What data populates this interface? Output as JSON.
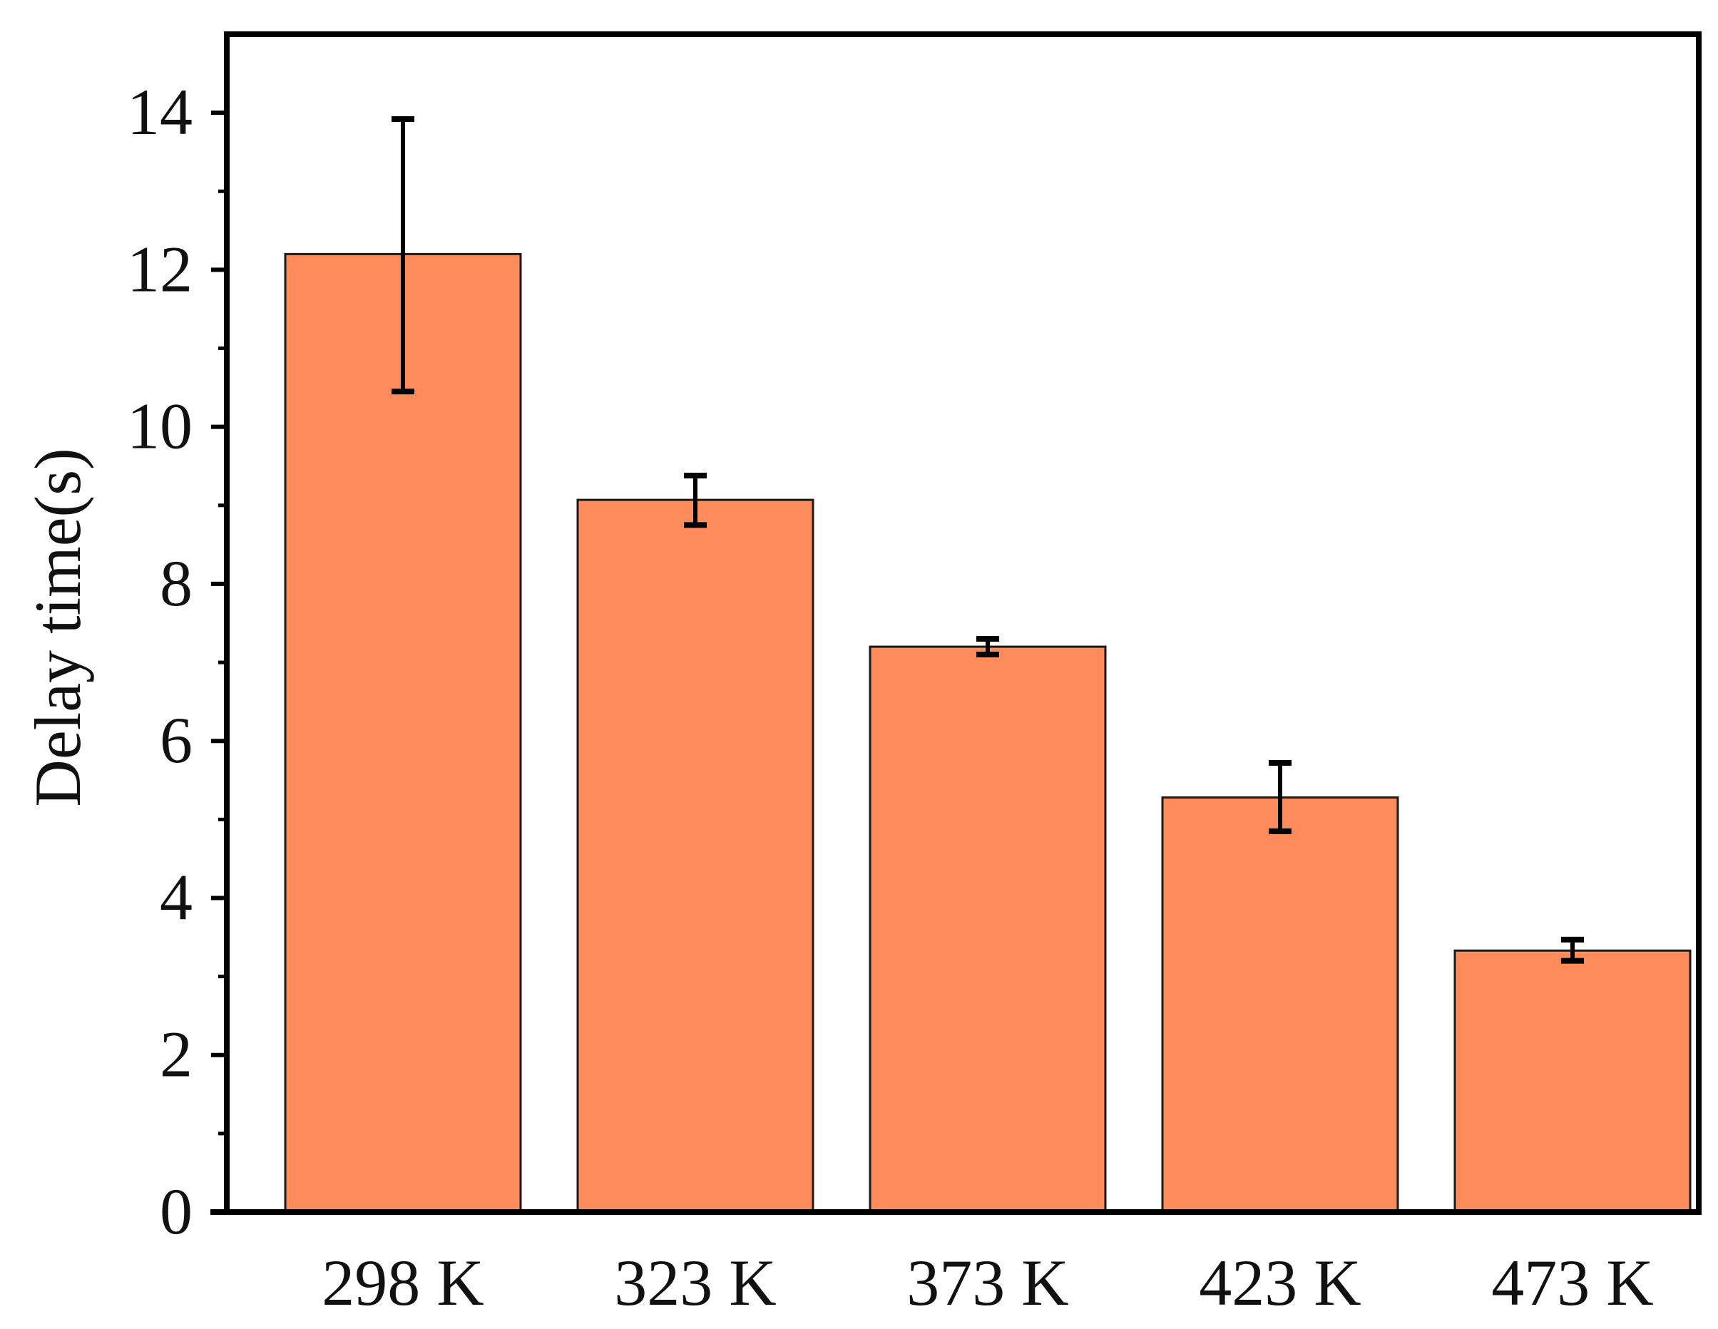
{
  "chart_data": {
    "type": "bar",
    "title": "",
    "xlabel": "",
    "ylabel": "Delay time(s)",
    "categories": [
      "298 K",
      "323 K",
      "373 K",
      "423 K",
      "473 K"
    ],
    "values": [
      12.2,
      9.07,
      7.2,
      5.28,
      3.33
    ],
    "error_low": [
      10.45,
      8.75,
      7.1,
      4.85,
      3.2
    ],
    "error_high": [
      13.92,
      9.38,
      7.3,
      5.72,
      3.47
    ],
    "ylim": [
      0,
      15
    ],
    "yticks": [
      0,
      2,
      4,
      6,
      8,
      10,
      12,
      14
    ],
    "ytick_labels": [
      "0",
      "2",
      "4",
      "6",
      "8",
      "10",
      "12",
      "14"
    ],
    "grid": false,
    "legend": "none",
    "colors": {
      "bar": "#ff8c5a",
      "bar_edge": "#1a1a1a",
      "axis": "#000000",
      "errorbar": "#000000"
    }
  }
}
